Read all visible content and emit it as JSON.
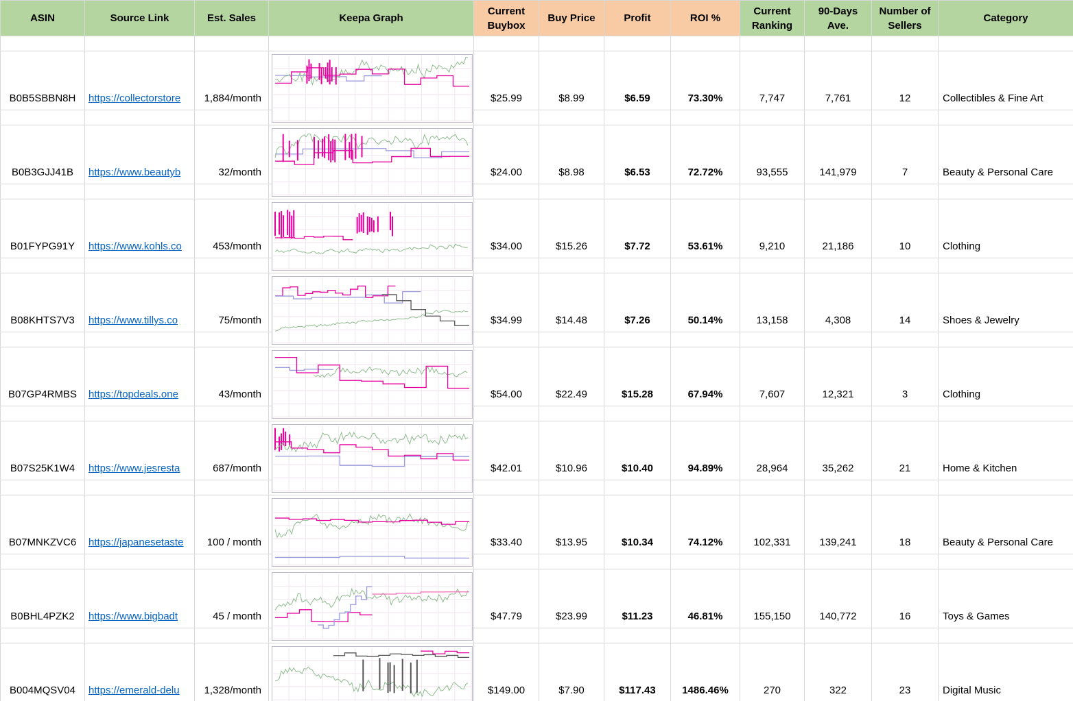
{
  "colors": {
    "header_green": "#b5d5a0",
    "header_orange": "#f8cba4",
    "hyperlink_blue": "#0563c1",
    "grid_line": "#d8d8d8",
    "keepa_palette": {
      "green": "#8fbc8f",
      "mag": "#e6009e",
      "lav": "#9b9bdc",
      "dark": "#555555",
      "pink": "#f06eb8"
    }
  },
  "table": {
    "columns": [
      {
        "key": "asin",
        "label": "ASIN"
      },
      {
        "key": "source_link",
        "label": "Source Link"
      },
      {
        "key": "est_sales",
        "label": "Est. Sales"
      },
      {
        "key": "keepa_graph",
        "label": "Keepa Graph"
      },
      {
        "key": "current_buybox",
        "label": "Current Buybox"
      },
      {
        "key": "buy_price",
        "label": "Buy Price"
      },
      {
        "key": "profit",
        "label": "Profit"
      },
      {
        "key": "roi",
        "label": "ROI %"
      },
      {
        "key": "current_ranking",
        "label": "Current Ranking"
      },
      {
        "key": "ninety_days_ave",
        "label": "90-Days Ave."
      },
      {
        "key": "number_of_sellers",
        "label": "Number of Sellers"
      },
      {
        "key": "category",
        "label": "Category"
      }
    ],
    "rows": [
      {
        "asin": "B0B5SBBN8H",
        "source_link": "https://collectorstore",
        "est_sales": "1,884/month",
        "current_buybox": "$25.99",
        "buy_price": "$8.99",
        "profit": "$6.59",
        "roi": "73.30%",
        "current_ranking": "7,747",
        "ninety_days_ave": "7,761",
        "number_of_sellers": "12",
        "category": "Collectibles & Fine Art",
        "keepa": {
          "seed": 11,
          "series": [
            {
              "type": "step",
              "color": "lav",
              "base": 0.3,
              "amp": 0.25,
              "segs": 6,
              "region": [
                0,
                0.55
              ]
            },
            {
              "type": "jagged",
              "color": "green",
              "from": 0.4,
              "to": 0.25,
              "amp": 0.45
            },
            {
              "type": "spikes",
              "color": "mag",
              "region": [
                0.1,
                0.32
              ],
              "top": 0.04,
              "bottom": 0.45,
              "density": 0.5
            },
            {
              "type": "step",
              "color": "mag",
              "base": 0.32,
              "amp": 0.3,
              "segs": 12
            }
          ]
        }
      },
      {
        "asin": "B0B3GJJ41B",
        "source_link": "https://www.beautyb",
        "est_sales": "32/month",
        "current_buybox": "$24.00",
        "buy_price": "$8.98",
        "profit": "$6.53",
        "roi": "72.72%",
        "current_ranking": "93,555",
        "ninety_days_ave": "141,979",
        "number_of_sellers": "7",
        "category": "Beauty & Personal Care",
        "keepa": {
          "seed": 22,
          "series": [
            {
              "type": "step",
              "color": "lav",
              "base": 0.35,
              "amp": 0.2,
              "segs": 7
            },
            {
              "type": "jagged",
              "color": "green",
              "base": 0.38,
              "amp": 0.5
            },
            {
              "type": "spikes",
              "color": "mag",
              "region": [
                0.02,
                0.45
              ],
              "top": 0.06,
              "bottom": 0.5,
              "density": 0.55
            },
            {
              "type": "step",
              "color": "mag",
              "base": 0.4,
              "amp": 0.3,
              "segs": 10
            }
          ]
        }
      },
      {
        "asin": "B01FYPG91Y",
        "source_link": "https://www.kohls.co",
        "est_sales": "453/month",
        "current_buybox": "$34.00",
        "buy_price": "$15.26",
        "profit": "$7.72",
        "roi": "53.61%",
        "current_ranking": "9,210",
        "ninety_days_ave": "21,186",
        "number_of_sellers": "10",
        "category": "Clothing",
        "keepa": {
          "seed": 33,
          "series": [
            {
              "type": "jagged",
              "color": "green",
              "from": 0.72,
              "to": 0.6,
              "amp": 0.18
            },
            {
              "type": "spikes",
              "color": "mag",
              "region": [
                0,
                0.1
              ],
              "top": 0.05,
              "bottom": 0.55,
              "density": 0.7
            },
            {
              "type": "spikes",
              "color": "mag",
              "region": [
                0.38,
                0.62
              ],
              "top": 0.12,
              "bottom": 0.5,
              "density": 0.45
            },
            {
              "type": "step",
              "color": "mag",
              "base": 0.5,
              "amp": 0.12,
              "segs": 8,
              "region": [
                0,
                0.4
              ]
            }
          ]
        }
      },
      {
        "asin": "B08KHTS7V3",
        "source_link": "https://www.tillys.co",
        "est_sales": "75/month",
        "current_buybox": "$34.99",
        "buy_price": "$14.48",
        "profit": "$7.26",
        "roi": "50.14%",
        "current_ranking": "13,158",
        "ninety_days_ave": "4,308",
        "number_of_sellers": "14",
        "category": "Shoes & Jewelry",
        "keepa": {
          "seed": 44,
          "series": [
            {
              "type": "step",
              "color": "mag",
              "base": 0.22,
              "amp": 0.18,
              "segs": 16,
              "region": [
                0,
                0.62
              ]
            },
            {
              "type": "step",
              "color": "lav",
              "base": 0.3,
              "amp": 0.2,
              "segs": 8,
              "region": [
                0,
                0.75
              ]
            },
            {
              "type": "jagged",
              "color": "green",
              "from": 0.8,
              "to": 0.45,
              "amp": 0.12
            },
            {
              "type": "step",
              "color": "dark",
              "from": 0.3,
              "to": 0.85,
              "amp": 0.1,
              "segs": 6,
              "region": [
                0.55,
                1
              ]
            }
          ]
        }
      },
      {
        "asin": "B07GP4RMBS",
        "source_link": "https://topdeals.one",
        "est_sales": "43/month",
        "current_buybox": "$54.00",
        "buy_price": "$22.49",
        "profit": "$15.28",
        "roi": "67.94%",
        "current_ranking": "7,607",
        "ninety_days_ave": "12,321",
        "number_of_sellers": "3",
        "category": "Clothing",
        "keepa": {
          "seed": 55,
          "series": [
            {
              "type": "step",
              "color": "lav",
              "base": 0.25,
              "amp": 0.1,
              "segs": 4,
              "region": [
                0,
                0.3
              ]
            },
            {
              "type": "jagged",
              "color": "green",
              "base": 0.42,
              "amp": 0.3,
              "region": [
                0.2,
                1
              ]
            },
            {
              "type": "step",
              "color": "mag",
              "from": 0.2,
              "to": 0.45,
              "amp": 0.4,
              "segs": 9
            }
          ]
        }
      },
      {
        "asin": "B07S25K1W4",
        "source_link": "https://www.jesresta",
        "est_sales": "687/month",
        "current_buybox": "$42.01",
        "buy_price": "$10.96",
        "profit": "$10.40",
        "roi": "94.89%",
        "current_ranking": "28,964",
        "ninety_days_ave": "35,262",
        "number_of_sellers": "21",
        "category": "Home & Kitchen",
        "keepa": {
          "seed": 66,
          "series": [
            {
              "type": "spikes",
              "color": "mag",
              "region": [
                0,
                0.08
              ],
              "top": 0.04,
              "bottom": 0.4,
              "density": 0.7
            },
            {
              "type": "step",
              "color": "lav",
              "base": 0.55,
              "amp": 0.25,
              "segs": 6
            },
            {
              "type": "jagged",
              "color": "green",
              "base": 0.42,
              "amp": 0.5
            },
            {
              "type": "step",
              "color": "mag",
              "from": 0.28,
              "to": 0.55,
              "amp": 0.2,
              "segs": 12
            }
          ]
        }
      },
      {
        "asin": "B07MNKZVC6",
        "source_link": "https://japanesetaste",
        "est_sales": "100 / month",
        "current_buybox": "$33.40",
        "buy_price": "$13.95",
        "profit": "$10.34",
        "roi": "74.12%",
        "current_ranking": "102,331",
        "ninety_days_ave": "139,241",
        "number_of_sellers": "18",
        "category": "Beauty & Personal Care",
        "keepa": {
          "seed": 77,
          "series": [
            {
              "type": "step",
              "color": "lav",
              "base": 0.88,
              "amp": 0.04,
              "segs": 3
            },
            {
              "type": "jagged",
              "color": "green",
              "base": 0.5,
              "amp": 0.45
            },
            {
              "type": "step",
              "color": "mag",
              "from": 0.3,
              "to": 0.36,
              "amp": 0.06,
              "segs": 14
            }
          ]
        }
      },
      {
        "asin": "B0BHL4PZK2",
        "source_link": "https://www.bigbadt",
        "est_sales": "45 / month",
        "current_buybox": "$47.79",
        "buy_price": "$23.99",
        "profit": "$11.23",
        "roi": "46.81%",
        "current_ranking": "155,150",
        "ninety_days_ave": "140,772",
        "number_of_sellers": "16",
        "category": "Toys & Games",
        "keepa": {
          "seed": 88,
          "series": [
            {
              "type": "jagged",
              "color": "green",
              "base": 0.5,
              "amp": 0.45
            },
            {
              "type": "step",
              "color": "mag",
              "base": 0.62,
              "amp": 0.25,
              "segs": 8,
              "region": [
                0,
                0.5
              ]
            },
            {
              "type": "step",
              "color": "lav",
              "from": 0.85,
              "to": 0.2,
              "amp": 0.15,
              "segs": 10,
              "region": [
                0.22,
                0.5
              ]
            },
            {
              "type": "step",
              "color": "pink",
              "base": 0.3,
              "amp": 0.05,
              "segs": 4,
              "region": [
                0.5,
                1
              ]
            }
          ]
        }
      },
      {
        "asin": "B004MQSV04",
        "source_link": "https://emerald-delu",
        "est_sales": "1,328/month",
        "current_buybox": "$149.00",
        "buy_price": "$7.90",
        "profit": "$117.43",
        "roi": "1486.46%",
        "current_ranking": "270",
        "ninety_days_ave": "322",
        "number_of_sellers": "23",
        "category": "Digital Music",
        "keepa": {
          "seed": 99,
          "series": [
            {
              "type": "jagged",
              "color": "green",
              "base": 0.5,
              "amp": 0.4
            },
            {
              "type": "step",
              "color": "dark",
              "base": 0.12,
              "amp": 0.08,
              "segs": 12,
              "region": [
                0.3,
                1
              ]
            },
            {
              "type": "spikes",
              "color": "dark",
              "region": [
                0.4,
                0.75
              ],
              "top": 0.15,
              "bottom": 0.7,
              "density": 0.35
            },
            {
              "type": "step",
              "color": "mag",
              "base": 0.08,
              "amp": 0.05,
              "segs": 4,
              "region": [
                0.75,
                1
              ]
            }
          ]
        }
      }
    ]
  }
}
